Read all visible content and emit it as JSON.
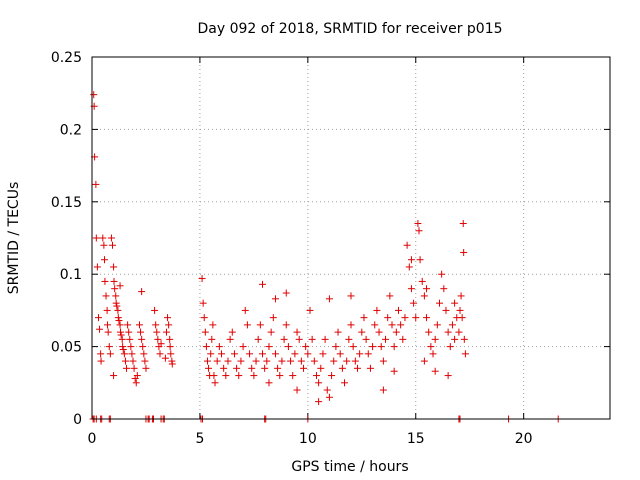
{
  "chart_data": {
    "type": "scatter",
    "title": "Day 092 of 2018, SRMTID for receiver p015",
    "xlabel": "GPS time / hours",
    "ylabel": "SRMTID / TECUs",
    "xlim": [
      0,
      24
    ],
    "ylim": [
      0,
      0.25
    ],
    "xticks": [
      0,
      5,
      10,
      15,
      20
    ],
    "yticks": [
      0,
      0.05,
      0.1,
      0.15,
      0.2,
      0.25
    ],
    "xtick_labels": [
      "0",
      "5",
      "10",
      "15",
      "20"
    ],
    "ytick_labels": [
      "0",
      "0.05",
      "0.1",
      "0.15",
      "0.2",
      "0.25"
    ],
    "grid": true,
    "marker": "+",
    "color": "#e00000",
    "series": [
      {
        "name": "SRMTID",
        "points": [
          [
            0.08,
            0.224
          ],
          [
            0.1,
            0.216
          ],
          [
            0.12,
            0.181
          ],
          [
            0.18,
            0.162
          ],
          [
            0.2,
            0.125
          ],
          [
            0.25,
            0.105
          ],
          [
            0.3,
            0.07
          ],
          [
            0.35,
            0.062
          ],
          [
            0.4,
            0.045
          ],
          [
            0.42,
            0.04
          ],
          [
            0.5,
            0.125
          ],
          [
            0.55,
            0.12
          ],
          [
            0.58,
            0.11
          ],
          [
            0.6,
            0.095
          ],
          [
            0.65,
            0.085
          ],
          [
            0.7,
            0.075
          ],
          [
            0.72,
            0.065
          ],
          [
            0.75,
            0.06
          ],
          [
            0.8,
            0.05
          ],
          [
            0.85,
            0.045
          ],
          [
            0.9,
            0.125
          ],
          [
            0.95,
            0.12
          ],
          [
            1.0,
            0.105
          ],
          [
            1.02,
            0.095
          ],
          [
            1.05,
            0.09
          ],
          [
            1.1,
            0.085
          ],
          [
            1.12,
            0.08
          ],
          [
            1.15,
            0.078
          ],
          [
            1.2,
            0.075
          ],
          [
            1.22,
            0.07
          ],
          [
            1.25,
            0.068
          ],
          [
            1.3,
            0.065
          ],
          [
            1.32,
            0.06
          ],
          [
            1.35,
            0.058
          ],
          [
            1.4,
            0.055
          ],
          [
            1.42,
            0.05
          ],
          [
            1.45,
            0.048
          ],
          [
            1.5,
            0.045
          ],
          [
            1.55,
            0.04
          ],
          [
            1.6,
            0.035
          ],
          [
            1.65,
            0.065
          ],
          [
            1.7,
            0.06
          ],
          [
            1.75,
            0.055
          ],
          [
            1.8,
            0.05
          ],
          [
            1.85,
            0.045
          ],
          [
            1.9,
            0.04
          ],
          [
            1.95,
            0.035
          ],
          [
            2.0,
            0.028
          ],
          [
            2.05,
            0.025
          ],
          [
            2.1,
            0.03
          ],
          [
            2.2,
            0.065
          ],
          [
            2.25,
            0.06
          ],
          [
            2.3,
            0.055
          ],
          [
            2.35,
            0.05
          ],
          [
            2.4,
            0.045
          ],
          [
            2.45,
            0.04
          ],
          [
            2.5,
            0.035
          ],
          [
            2.3,
            0.088
          ],
          [
            1.0,
            0.03
          ],
          [
            1.3,
            0.092
          ],
          [
            2.9,
            0.075
          ],
          [
            2.95,
            0.065
          ],
          [
            3.0,
            0.06
          ],
          [
            3.05,
            0.055
          ],
          [
            3.1,
            0.05
          ],
          [
            3.15,
            0.045
          ],
          [
            3.2,
            0.052
          ],
          [
            3.5,
            0.07
          ],
          [
            3.55,
            0.065
          ],
          [
            3.6,
            0.055
          ],
          [
            3.62,
            0.05
          ],
          [
            3.65,
            0.045
          ],
          [
            3.7,
            0.04
          ],
          [
            3.72,
            0.038
          ],
          [
            3.4,
            0.042
          ],
          [
            3.45,
            0.06
          ],
          [
            5.1,
            0.097
          ],
          [
            5.15,
            0.08
          ],
          [
            5.2,
            0.07
          ],
          [
            5.25,
            0.06
          ],
          [
            5.3,
            0.05
          ],
          [
            5.35,
            0.04
          ],
          [
            5.4,
            0.035
          ],
          [
            5.45,
            0.03
          ],
          [
            5.5,
            0.045
          ],
          [
            5.55,
            0.055
          ],
          [
            5.6,
            0.065
          ],
          [
            5.65,
            0.03
          ],
          [
            5.7,
            0.025
          ],
          [
            5.8,
            0.04
          ],
          [
            5.9,
            0.05
          ],
          [
            6.0,
            0.045
          ],
          [
            6.1,
            0.035
          ],
          [
            6.2,
            0.03
          ],
          [
            6.3,
            0.04
          ],
          [
            6.4,
            0.055
          ],
          [
            6.5,
            0.06
          ],
          [
            6.6,
            0.045
          ],
          [
            6.7,
            0.035
          ],
          [
            6.8,
            0.03
          ],
          [
            6.9,
            0.04
          ],
          [
            7.0,
            0.05
          ],
          [
            7.1,
            0.075
          ],
          [
            7.2,
            0.065
          ],
          [
            7.3,
            0.045
          ],
          [
            7.4,
            0.035
          ],
          [
            7.5,
            0.03
          ],
          [
            7.6,
            0.04
          ],
          [
            7.7,
            0.055
          ],
          [
            7.8,
            0.065
          ],
          [
            7.9,
            0.045
          ],
          [
            8.0,
            0.035
          ],
          [
            8.1,
            0.04
          ],
          [
            8.2,
            0.05
          ],
          [
            8.3,
            0.06
          ],
          [
            8.4,
            0.07
          ],
          [
            8.5,
            0.045
          ],
          [
            8.6,
            0.035
          ],
          [
            8.7,
            0.03
          ],
          [
            8.8,
            0.04
          ],
          [
            8.9,
            0.055
          ],
          [
            9.0,
            0.065
          ],
          [
            9.1,
            0.05
          ],
          [
            9.2,
            0.04
          ],
          [
            9.3,
            0.03
          ],
          [
            9.4,
            0.045
          ],
          [
            9.5,
            0.06
          ],
          [
            9.6,
            0.055
          ],
          [
            9.7,
            0.04
          ],
          [
            9.8,
            0.035
          ],
          [
            9.9,
            0.05
          ],
          [
            10.0,
            0.045
          ],
          [
            7.9,
            0.093
          ],
          [
            8.5,
            0.083
          ],
          [
            9.0,
            0.087
          ],
          [
            10.1,
            0.075
          ],
          [
            10.2,
            0.055
          ],
          [
            10.3,
            0.04
          ],
          [
            10.4,
            0.03
          ],
          [
            10.5,
            0.025
          ],
          [
            10.6,
            0.035
          ],
          [
            10.7,
            0.045
          ],
          [
            10.8,
            0.055
          ],
          [
            10.9,
            0.02
          ],
          [
            11.0,
            0.015
          ],
          [
            11.1,
            0.03
          ],
          [
            11.2,
            0.04
          ],
          [
            11.3,
            0.05
          ],
          [
            11.4,
            0.06
          ],
          [
            11.5,
            0.045
          ],
          [
            11.6,
            0.035
          ],
          [
            11.7,
            0.025
          ],
          [
            11.8,
            0.04
          ],
          [
            11.9,
            0.055
          ],
          [
            12.0,
            0.065
          ],
          [
            12.1,
            0.05
          ],
          [
            12.2,
            0.04
          ],
          [
            12.3,
            0.035
          ],
          [
            12.4,
            0.045
          ],
          [
            12.5,
            0.06
          ],
          [
            12.6,
            0.07
          ],
          [
            12.7,
            0.055
          ],
          [
            12.8,
            0.045
          ],
          [
            12.9,
            0.035
          ],
          [
            13.0,
            0.05
          ],
          [
            13.1,
            0.065
          ],
          [
            13.2,
            0.075
          ],
          [
            13.3,
            0.06
          ],
          [
            13.4,
            0.05
          ],
          [
            13.5,
            0.04
          ],
          [
            13.6,
            0.055
          ],
          [
            13.7,
            0.07
          ],
          [
            13.8,
            0.085
          ],
          [
            13.9,
            0.065
          ],
          [
            14.0,
            0.05
          ],
          [
            14.1,
            0.06
          ],
          [
            14.2,
            0.075
          ],
          [
            14.3,
            0.065
          ],
          [
            14.4,
            0.055
          ],
          [
            14.5,
            0.07
          ],
          [
            14.6,
            0.12
          ],
          [
            14.7,
            0.105
          ],
          [
            14.8,
            0.09
          ],
          [
            14.9,
            0.08
          ],
          [
            15.0,
            0.07
          ],
          [
            15.1,
            0.135
          ],
          [
            15.15,
            0.13
          ],
          [
            15.2,
            0.11
          ],
          [
            15.3,
            0.095
          ],
          [
            15.4,
            0.085
          ],
          [
            15.5,
            0.07
          ],
          [
            15.6,
            0.06
          ],
          [
            15.7,
            0.05
          ],
          [
            15.8,
            0.045
          ],
          [
            15.9,
            0.055
          ],
          [
            16.0,
            0.065
          ],
          [
            16.1,
            0.08
          ],
          [
            16.2,
            0.1
          ],
          [
            16.3,
            0.09
          ],
          [
            16.4,
            0.075
          ],
          [
            16.5,
            0.06
          ],
          [
            16.6,
            0.05
          ],
          [
            16.7,
            0.065
          ],
          [
            16.8,
            0.08
          ],
          [
            16.9,
            0.07
          ],
          [
            17.0,
            0.06
          ],
          [
            17.05,
            0.075
          ],
          [
            17.1,
            0.085
          ],
          [
            17.15,
            0.07
          ],
          [
            17.2,
            0.135
          ],
          [
            17.22,
            0.115
          ],
          [
            17.25,
            0.055
          ],
          [
            17.3,
            0.045
          ],
          [
            15.4,
            0.04
          ],
          [
            15.9,
            0.033
          ],
          [
            16.5,
            0.03
          ],
          [
            12.0,
            0.085
          ],
          [
            11.0,
            0.083
          ],
          [
            13.5,
            0.02
          ],
          [
            10.5,
            0.012
          ],
          [
            14.0,
            0.033
          ],
          [
            14.8,
            0.11
          ],
          [
            15.5,
            0.09
          ],
          [
            16.8,
            0.055
          ],
          [
            9.5,
            0.02
          ],
          [
            8.2,
            0.025
          ]
        ]
      }
    ],
    "zero_points_x": [
      0.05,
      0.1,
      0.2,
      0.4,
      0.45,
      0.8,
      0.85,
      2.5,
      2.6,
      2.65,
      2.8,
      2.85,
      3.2,
      3.3,
      3.35,
      5.05,
      5.12,
      8.0,
      8.05,
      10.0,
      17.0,
      17.05,
      19.3,
      21.6
    ]
  }
}
